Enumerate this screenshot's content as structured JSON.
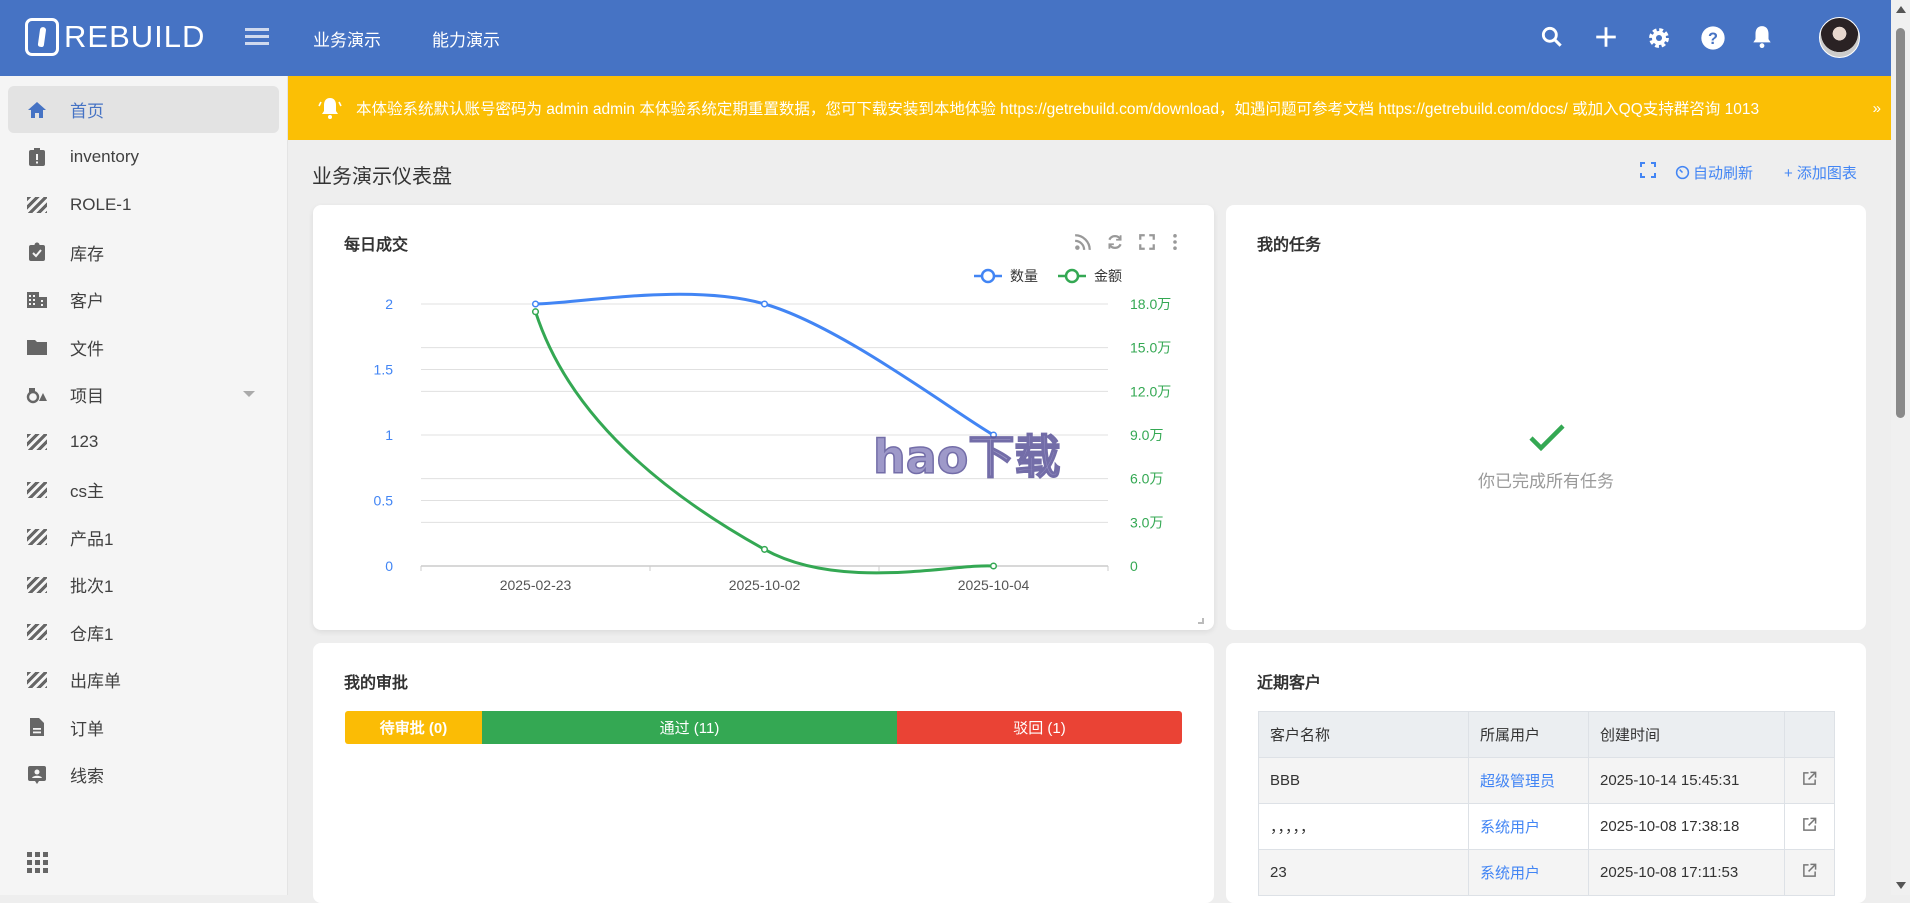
{
  "header": {
    "logo_text": "REBUILD",
    "nav": [
      "业务演示",
      "能力演示"
    ],
    "icons": [
      "search-icon",
      "plus-icon",
      "gear-icon",
      "help-icon",
      "bell-icon"
    ]
  },
  "sidebar": {
    "items": [
      {
        "label": "首页",
        "icon": "home-icon",
        "active": true
      },
      {
        "label": "inventory",
        "icon": "clipboard-alert-icon"
      },
      {
        "label": "ROLE-1",
        "icon": "hatch-icon"
      },
      {
        "label": "库存",
        "icon": "clipboard-check-icon"
      },
      {
        "label": "客户",
        "icon": "building-icon"
      },
      {
        "label": "文件",
        "icon": "folder-icon"
      },
      {
        "label": "项目",
        "icon": "shapes-icon",
        "expandable": true
      },
      {
        "label": "123",
        "icon": "hatch-icon"
      },
      {
        "label": "cs主",
        "icon": "hatch-icon"
      },
      {
        "label": "产品1",
        "icon": "hatch-icon"
      },
      {
        "label": "批次1",
        "icon": "hatch-icon"
      },
      {
        "label": "仓库1",
        "icon": "hatch-icon"
      },
      {
        "label": "出库单",
        "icon": "hatch-icon"
      },
      {
        "label": "订单",
        "icon": "document-icon"
      },
      {
        "label": "线索",
        "icon": "contact-icon"
      }
    ]
  },
  "banner": {
    "text": "本体验系统默认账号密码为 admin admin 本体验系统定期重置数据，您可下载安装到本地体验 https://getrebuild.com/download，如遇问题可参考文档 https://getrebuild.com/docs/ 或加入QQ支持群咨询 1013"
  },
  "dashboard": {
    "title": "业务演示仪表盘",
    "auto_refresh": "自动刷新",
    "add_chart": "+ 添加图表"
  },
  "chart_card": {
    "title": "每日成交",
    "watermark": "hao下载"
  },
  "chart_data": {
    "type": "line",
    "smooth": true,
    "categories": [
      "2025-02-23",
      "2025-10-02",
      "2025-10-04"
    ],
    "series": [
      {
        "name": "数量",
        "axis": "left",
        "color": "#4285f4",
        "values": [
          2,
          2,
          1
        ]
      },
      {
        "name": "金额",
        "axis": "right",
        "color": "#34a853",
        "values": [
          174700,
          11400,
          0
        ]
      }
    ],
    "y_left": {
      "range": [
        0,
        2
      ],
      "ticks": [
        "0",
        "0.5",
        "1",
        "1.5",
        "2"
      ]
    },
    "y_right": {
      "range": [
        0,
        180000
      ],
      "ticks": [
        "0",
        "3.0万",
        "6.0万",
        "9.0万",
        "12.0万",
        "15.0万",
        "18.0万"
      ]
    },
    "legend": "top-right",
    "grid": true
  },
  "tasks_card": {
    "title": "我的任务",
    "empty": "你已完成所有任务"
  },
  "approval_card": {
    "title": "我的审批",
    "segments": [
      {
        "label": "待审批 (0)",
        "color": "#fbbc05",
        "value": 0
      },
      {
        "label": "通过 (11)",
        "color": "#34a853",
        "value": 11
      },
      {
        "label": "驳回 (1)",
        "color": "#ea4335",
        "value": 1
      }
    ]
  },
  "customers_card": {
    "title": "近期客户",
    "columns": [
      "客户名称",
      "所属用户",
      "创建时间"
    ],
    "rows": [
      {
        "name": "BBB",
        "owner": "超级管理员",
        "created": "2025-10-14 15:45:31"
      },
      {
        "name": "，，，，，",
        "owner": "系统用户",
        "created": "2025-10-08 17:38:18"
      },
      {
        "name": "23",
        "owner": "系统用户",
        "created": "2025-10-08 17:11:53"
      }
    ]
  }
}
